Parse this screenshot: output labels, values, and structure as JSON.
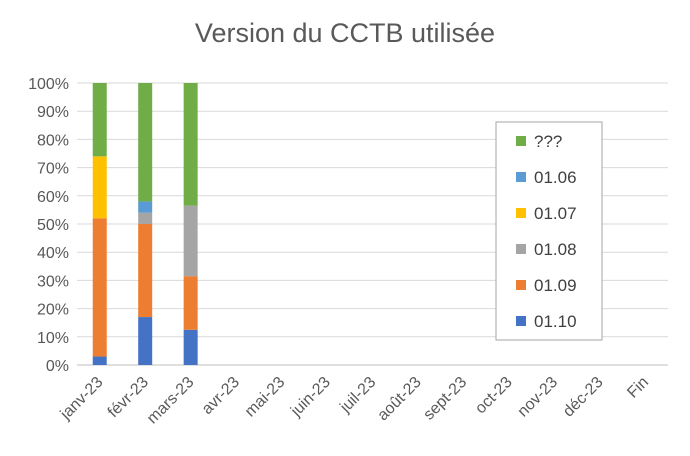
{
  "chart_data": {
    "type": "bar",
    "stacked": true,
    "title": "Version du CCTB utilisée",
    "xlabel": "",
    "ylabel": "",
    "ylim": [
      0,
      100
    ],
    "y_ticks": [
      "0%",
      "10%",
      "20%",
      "30%",
      "40%",
      "50%",
      "60%",
      "70%",
      "80%",
      "90%",
      "100%"
    ],
    "grid": true,
    "legend_position": "right",
    "categories": [
      "janv-23",
      "févr-23",
      "mars-23",
      "avr-23",
      "mai-23",
      "juin-23",
      "juil-23",
      "août-23",
      "sept-23",
      "oct-23",
      "nov-23",
      "déc-23",
      "Fin"
    ],
    "series": [
      {
        "name": "01.10",
        "color": "#4472C4",
        "values": [
          3,
          17,
          12.5,
          0,
          0,
          0,
          0,
          0,
          0,
          0,
          0,
          0,
          0
        ]
      },
      {
        "name": "01.09",
        "color": "#ED7D31",
        "values": [
          49,
          33,
          19,
          0,
          0,
          0,
          0,
          0,
          0,
          0,
          0,
          0,
          0
        ]
      },
      {
        "name": "01.08",
        "color": "#A5A5A5",
        "values": [
          0,
          4,
          25,
          0,
          0,
          0,
          0,
          0,
          0,
          0,
          0,
          0,
          0
        ]
      },
      {
        "name": "01.07",
        "color": "#FFC000",
        "values": [
          22,
          0,
          0,
          0,
          0,
          0,
          0,
          0,
          0,
          0,
          0,
          0,
          0
        ]
      },
      {
        "name": "01.06",
        "color": "#5B9BD5",
        "values": [
          0,
          4,
          0,
          0,
          0,
          0,
          0,
          0,
          0,
          0,
          0,
          0,
          0
        ]
      },
      {
        "name": "???",
        "color": "#70AD47",
        "values": [
          26,
          42,
          43.5,
          0,
          0,
          0,
          0,
          0,
          0,
          0,
          0,
          0,
          0
        ]
      }
    ]
  }
}
